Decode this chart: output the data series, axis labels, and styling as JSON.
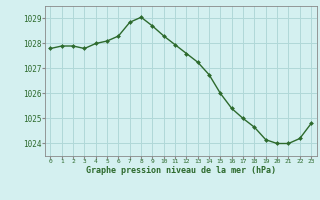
{
  "x": [
    0,
    1,
    2,
    3,
    4,
    5,
    6,
    7,
    8,
    9,
    10,
    11,
    12,
    13,
    14,
    15,
    16,
    17,
    18,
    19,
    20,
    21,
    22,
    23
  ],
  "y": [
    1027.8,
    1027.9,
    1027.9,
    1027.8,
    1028.0,
    1028.1,
    1028.3,
    1028.85,
    1029.05,
    1028.7,
    1028.3,
    1027.95,
    1027.6,
    1027.25,
    1026.75,
    1026.0,
    1025.4,
    1025.0,
    1024.65,
    1024.15,
    1024.0,
    1024.0,
    1024.2,
    1024.8
  ],
  "line_color": "#2d6a2d",
  "marker_color": "#2d6a2d",
  "bg_color": "#d4f0f0",
  "grid_color": "#b0d8d8",
  "xlabel": "Graphe pression niveau de la mer (hPa)",
  "xlabel_color": "#2d6a2d",
  "tick_color": "#2d6a2d",
  "ylim": [
    1023.5,
    1029.5
  ],
  "yticks": [
    1024,
    1025,
    1026,
    1027,
    1028,
    1029
  ],
  "xticks": [
    0,
    1,
    2,
    3,
    4,
    5,
    6,
    7,
    8,
    9,
    10,
    11,
    12,
    13,
    14,
    15,
    16,
    17,
    18,
    19,
    20,
    21,
    22,
    23
  ],
  "xtick_labels": [
    "0",
    "1",
    "2",
    "3",
    "4",
    "5",
    "6",
    "7",
    "8",
    "9",
    "10",
    "11",
    "12",
    "13",
    "14",
    "15",
    "16",
    "17",
    "18",
    "19",
    "20",
    "21",
    "22",
    "23"
  ]
}
